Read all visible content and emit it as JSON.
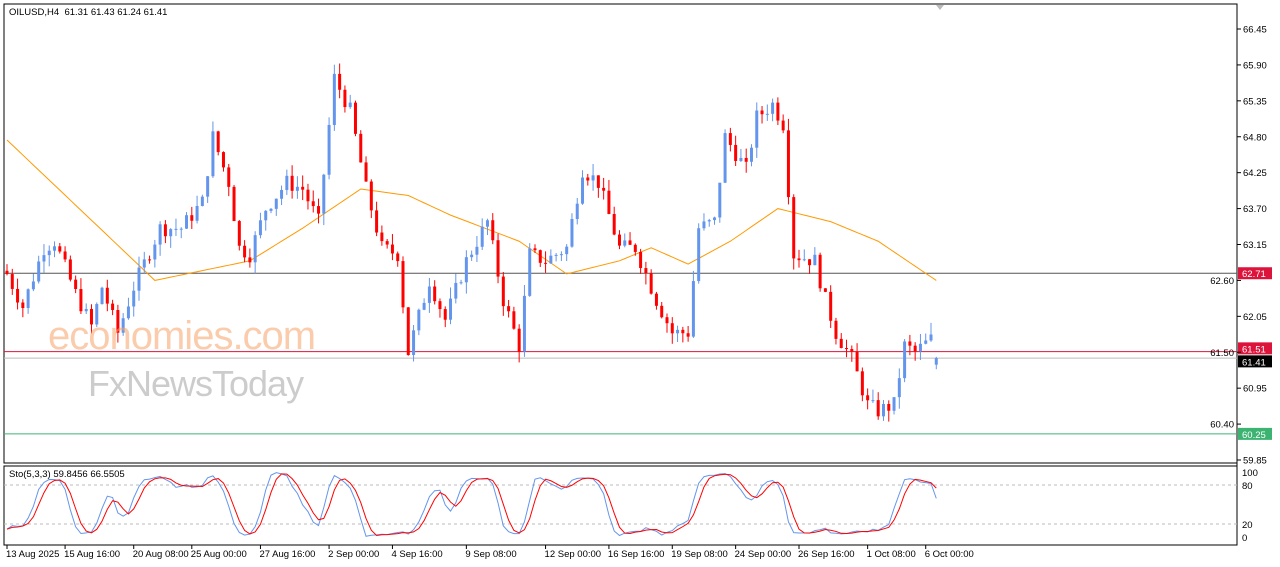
{
  "symbol_header": {
    "symbol": "OILUSD,H4",
    "ohlc": "61.31 61.43 61.24 61.41"
  },
  "indicator_header": "Sto(5,3,3) 59.8456 66.5505",
  "watermark": {
    "line1": "economies.com",
    "line2": "FxNewsToday"
  },
  "colors": {
    "bull": "#6495ed",
    "bear": "#ff0000",
    "ma": "#ff9900",
    "stoch_main": "#6495ed",
    "stoch_signal": "#ff0000",
    "resistance": "#dc143c",
    "support": "#3cb371"
  },
  "chart_data": {
    "type": "candlestick",
    "title": "OILUSD,H4",
    "ylim": [
      59.85,
      66.6
    ],
    "y_ticks": [
      "66.45",
      "65.90",
      "65.35",
      "64.80",
      "64.25",
      "63.70",
      "63.15",
      "62.60",
      "62.05",
      "61.50",
      "60.95",
      "60.40",
      "59.85"
    ],
    "close_keypoints": [
      [
        0,
        62.7
      ],
      [
        3,
        62.2
      ],
      [
        7,
        63.1
      ],
      [
        9,
        63.2
      ],
      [
        13,
        62.4
      ],
      [
        16,
        61.9
      ],
      [
        18,
        62.5
      ],
      [
        21,
        61.8
      ],
      [
        24,
        62.5
      ],
      [
        29,
        63.4
      ],
      [
        33,
        63.4
      ],
      [
        37,
        63.8
      ],
      [
        39,
        64.8
      ],
      [
        42,
        64.1
      ],
      [
        44,
        63.1
      ],
      [
        46,
        63.0
      ],
      [
        49,
        63.7
      ],
      [
        53,
        64.1
      ],
      [
        56,
        64.0
      ],
      [
        59,
        63.5
      ],
      [
        62,
        65.7
      ],
      [
        65,
        65.2
      ],
      [
        68,
        64.0
      ],
      [
        71,
        63.1
      ],
      [
        74,
        63.0
      ],
      [
        76,
        61.5
      ],
      [
        80,
        62.6
      ],
      [
        83,
        62.0
      ],
      [
        87,
        62.9
      ],
      [
        91,
        63.5
      ],
      [
        94,
        62.3
      ],
      [
        97,
        61.6
      ],
      [
        99,
        63.0
      ],
      [
        102,
        62.9
      ],
      [
        106,
        63.1
      ],
      [
        109,
        64.3
      ],
      [
        112,
        64.1
      ],
      [
        116,
        63.1
      ],
      [
        119,
        63.1
      ],
      [
        123,
        62.3
      ],
      [
        126,
        61.8
      ],
      [
        129,
        61.8
      ],
      [
        131,
        63.4
      ],
      [
        134,
        63.5
      ],
      [
        136,
        64.8
      ],
      [
        140,
        64.3
      ],
      [
        142,
        65.1
      ],
      [
        145,
        65.3
      ],
      [
        147,
        65.0
      ],
      [
        149,
        63.0
      ],
      [
        153,
        62.9
      ],
      [
        155,
        62.3
      ],
      [
        157,
        61.8
      ],
      [
        160,
        61.4
      ],
      [
        163,
        60.7
      ],
      [
        165,
        60.6
      ],
      [
        168,
        60.7
      ],
      [
        170,
        61.6
      ],
      [
        172,
        61.5
      ],
      [
        175,
        61.7
      ],
      [
        176,
        61.41
      ]
    ],
    "ma_keypoints": [
      [
        0,
        64.75
      ],
      [
        28,
        62.6
      ],
      [
        46,
        62.9
      ],
      [
        56,
        63.4
      ],
      [
        67,
        64.0
      ],
      [
        76,
        63.9
      ],
      [
        84,
        63.6
      ],
      [
        97,
        63.2
      ],
      [
        106,
        62.7
      ],
      [
        116,
        62.9
      ],
      [
        122,
        63.1
      ],
      [
        129,
        62.85
      ],
      [
        137,
        63.2
      ],
      [
        146,
        63.7
      ],
      [
        156,
        63.5
      ],
      [
        165,
        63.2
      ],
      [
        176,
        62.6
      ]
    ],
    "levels": [
      {
        "label": "62.71",
        "value": 62.71,
        "kind": "resistance-upper"
      },
      {
        "label": "61.51",
        "value": 61.51,
        "kind": "resistance"
      },
      {
        "label": "61.41",
        "value": 61.41,
        "kind": "bid"
      },
      {
        "label": "60.25",
        "value": 60.25,
        "kind": "support"
      }
    ],
    "stoch_levels": [
      "100",
      "80",
      "20",
      "0"
    ],
    "x_labels": [
      {
        "i": 0,
        "t": "13 Aug 2025"
      },
      {
        "i": 11,
        "t": "15 Aug 16:00"
      },
      {
        "i": 24,
        "t": "20 Aug 08:00"
      },
      {
        "i": 35,
        "t": "25 Aug 00:00"
      },
      {
        "i": 48,
        "t": "27 Aug 16:00"
      },
      {
        "i": 61,
        "t": "2 Sep 00:00"
      },
      {
        "i": 73,
        "t": "4 Sep 16:00"
      },
      {
        "i": 87,
        "t": "9 Sep 08:00"
      },
      {
        "i": 102,
        "t": "12 Sep 00:00"
      },
      {
        "i": 114,
        "t": "16 Sep 16:00"
      },
      {
        "i": 126,
        "t": "19 Sep 08:00"
      },
      {
        "i": 138,
        "t": "24 Sep 00:00"
      },
      {
        "i": 150,
        "t": "26 Sep 16:00"
      },
      {
        "i": 163,
        "t": "1 Oct 08:00"
      },
      {
        "i": 174,
        "t": "6 Oct 00:00"
      }
    ]
  }
}
